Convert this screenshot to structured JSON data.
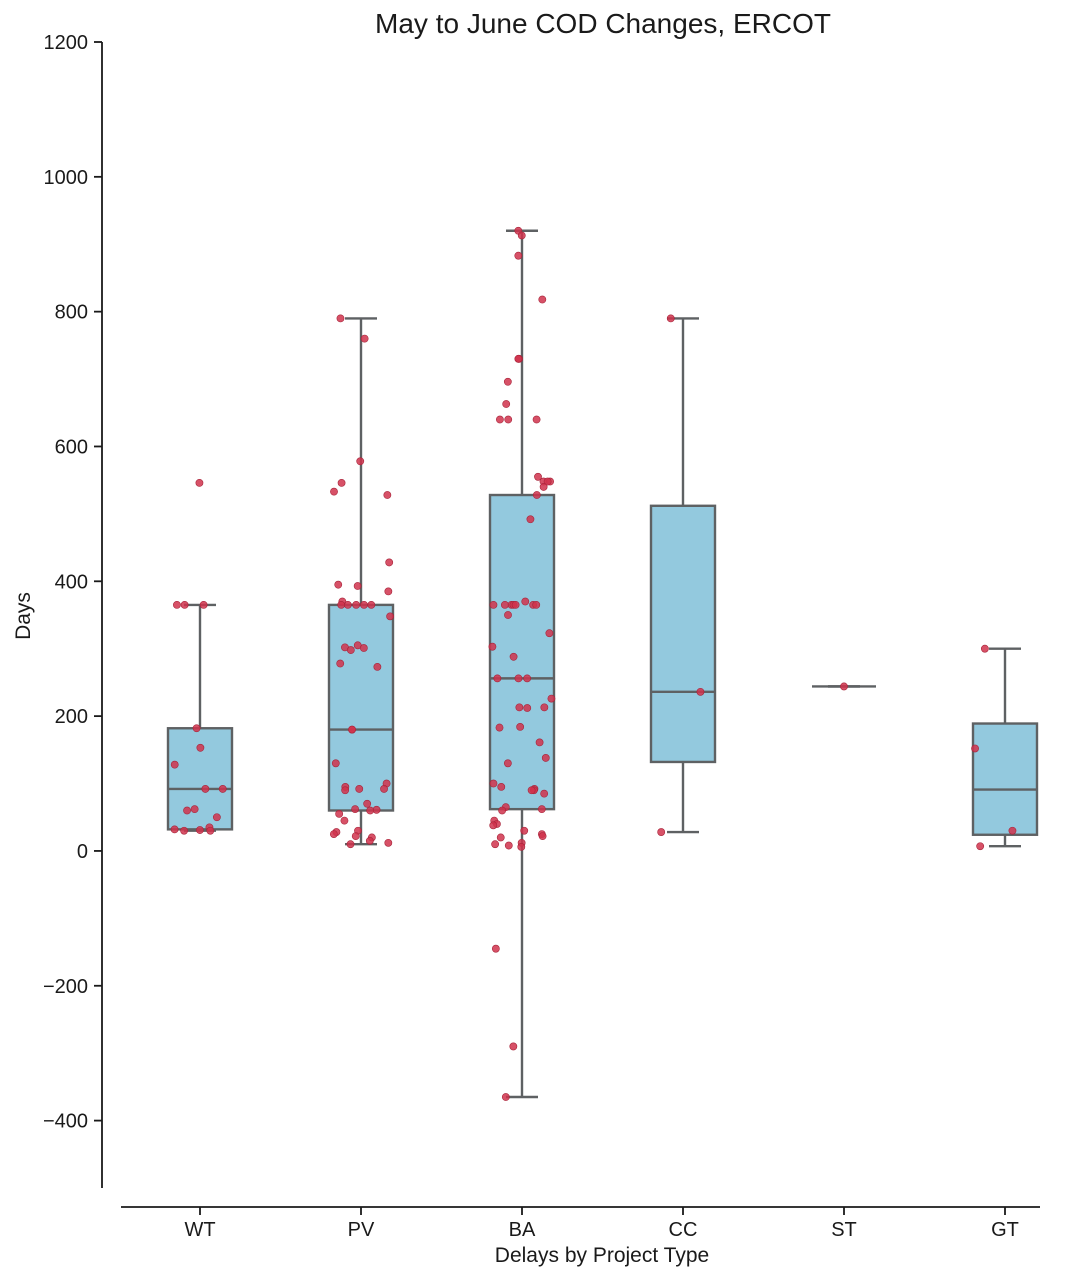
{
  "chart_data": {
    "type": "box",
    "title": "May to June COD Changes, ERCOT",
    "xlabel": "Delays by Project Type",
    "ylabel": "Days",
    "ylim": [
      -500,
      1200
    ],
    "yticks": [
      1200,
      1000,
      800,
      600,
      400,
      200,
      0,
      -200,
      -400
    ],
    "ytick_labels": [
      "1200",
      "1000",
      "800",
      "600",
      "400",
      "200",
      "0",
      "−200",
      "−400"
    ],
    "categories": [
      "WT",
      "PV",
      "BA",
      "CC",
      "ST",
      "GT"
    ],
    "colors": {
      "box_fill": "#93c9de",
      "box_edge": "#5e6163",
      "point": "#d0324c",
      "axis": "#1a1a1a"
    },
    "boxes": [
      {
        "category": "WT",
        "whisker_low": 30,
        "q1": 32,
        "median": 92,
        "q3": 182,
        "whisker_high": 365
      },
      {
        "category": "PV",
        "whisker_low": 10,
        "q1": 60,
        "median": 180,
        "q3": 365,
        "whisker_high": 790
      },
      {
        "category": "BA",
        "whisker_low": -365,
        "q1": 62,
        "median": 256,
        "q3": 528,
        "whisker_high": 920
      },
      {
        "category": "CC",
        "whisker_low": 28,
        "q1": 132,
        "median": 236,
        "q3": 512,
        "whisker_high": 790
      },
      {
        "category": "ST",
        "whisker_low": 244,
        "q1": 244,
        "median": 244,
        "q3": 244,
        "whisker_high": 244
      },
      {
        "category": "GT",
        "whisker_low": 7,
        "q1": 24,
        "median": 91,
        "q3": 189,
        "whisker_high": 300
      }
    ],
    "points": [
      {
        "category": "WT",
        "values": [
          546,
          365,
          365,
          365,
          182,
          153,
          128,
          92,
          92,
          62,
          60,
          50,
          35,
          32,
          31,
          30,
          30
        ]
      },
      {
        "category": "PV",
        "values": [
          790,
          760,
          578,
          546,
          533,
          528,
          428,
          395,
          393,
          385,
          370,
          365,
          365,
          365,
          365,
          365,
          348,
          305,
          302,
          301,
          298,
          278,
          273,
          180,
          180,
          130,
          100,
          95,
          92,
          92,
          90,
          70,
          62,
          61,
          60,
          55,
          45,
          30,
          28,
          25,
          22,
          20,
          15,
          12,
          10
        ]
      },
      {
        "category": "BA",
        "values": [
          920,
          913,
          883,
          818,
          730,
          730,
          696,
          663,
          640,
          640,
          640,
          555,
          548,
          548,
          548,
          540,
          528,
          492,
          370,
          365,
          365,
          365,
          365,
          365,
          365,
          365,
          350,
          323,
          303,
          288,
          256,
          256,
          256,
          226,
          213,
          213,
          212,
          184,
          183,
          161,
          138,
          130,
          100,
          95,
          92,
          90,
          90,
          85,
          65,
          62,
          60,
          45,
          40,
          38,
          30,
          25,
          22,
          20,
          12,
          10,
          8,
          6,
          -145,
          -290,
          -365
        ]
      },
      {
        "category": "CC",
        "values": [
          790,
          236,
          28
        ]
      },
      {
        "category": "ST",
        "values": [
          244
        ]
      },
      {
        "category": "GT",
        "values": [
          300,
          152,
          30,
          7
        ]
      }
    ]
  }
}
